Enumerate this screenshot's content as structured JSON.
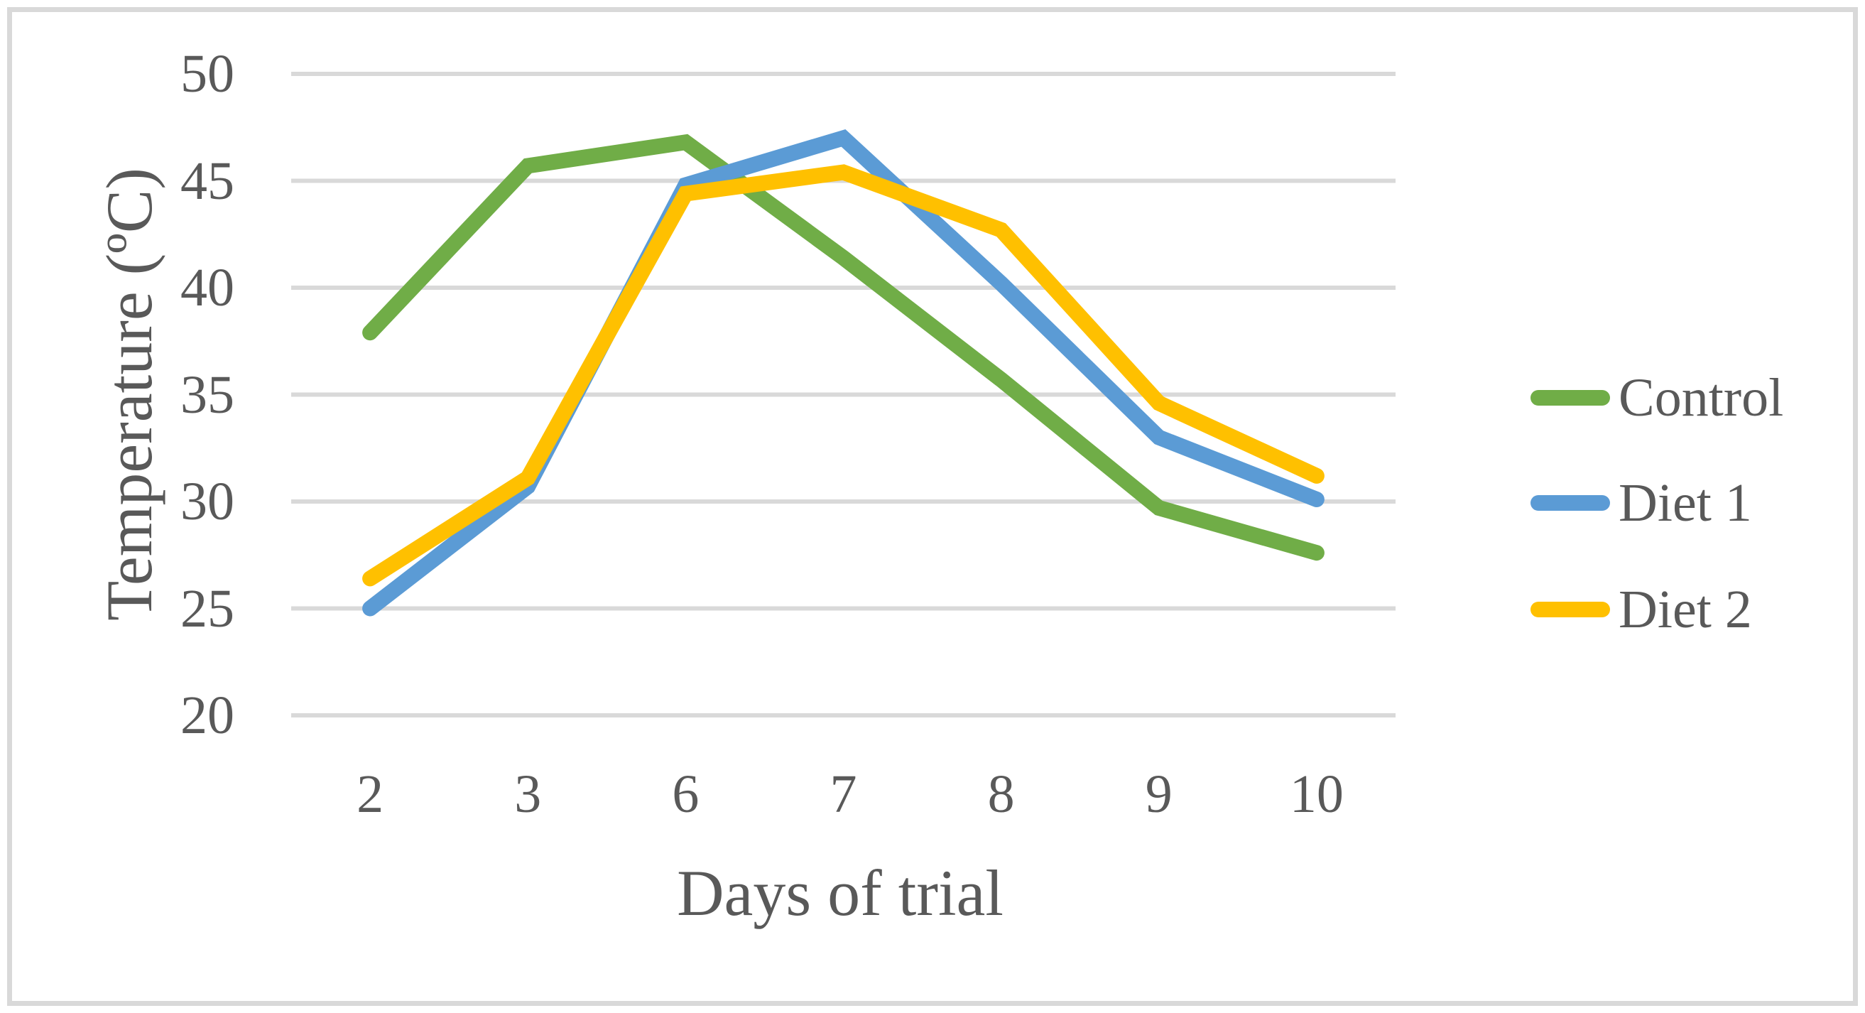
{
  "figure": {
    "background": "#FFFFFF",
    "border_color": "#D9D9D9",
    "gridline_color": "#D9D9D9",
    "text_color": "#595959"
  },
  "chart_data": {
    "type": "line",
    "title": "",
    "xlabel": "Days of trial",
    "ylabel": "Temperature (ºC)",
    "categories": [
      "2",
      "3",
      "6",
      "7",
      "8",
      "9",
      "10"
    ],
    "y_ticks": [
      "20",
      "25",
      "30",
      "35",
      "40",
      "45",
      "50"
    ],
    "ylim": [
      20,
      50
    ],
    "grid": true,
    "legend_position": "right",
    "series": [
      {
        "name": "Control",
        "color": "#70AD47",
        "values": [
          37.9,
          45.7,
          46.8,
          41.4,
          35.7,
          29.7,
          27.6
        ]
      },
      {
        "name": "Diet 1",
        "color": "#5B9BD5",
        "values": [
          25.0,
          30.7,
          44.8,
          47.0,
          40.2,
          33.0,
          30.1
        ]
      },
      {
        "name": "Diet 2",
        "color": "#FFC000",
        "values": [
          26.4,
          31.1,
          44.4,
          45.4,
          42.7,
          34.6,
          31.2
        ]
      }
    ]
  }
}
